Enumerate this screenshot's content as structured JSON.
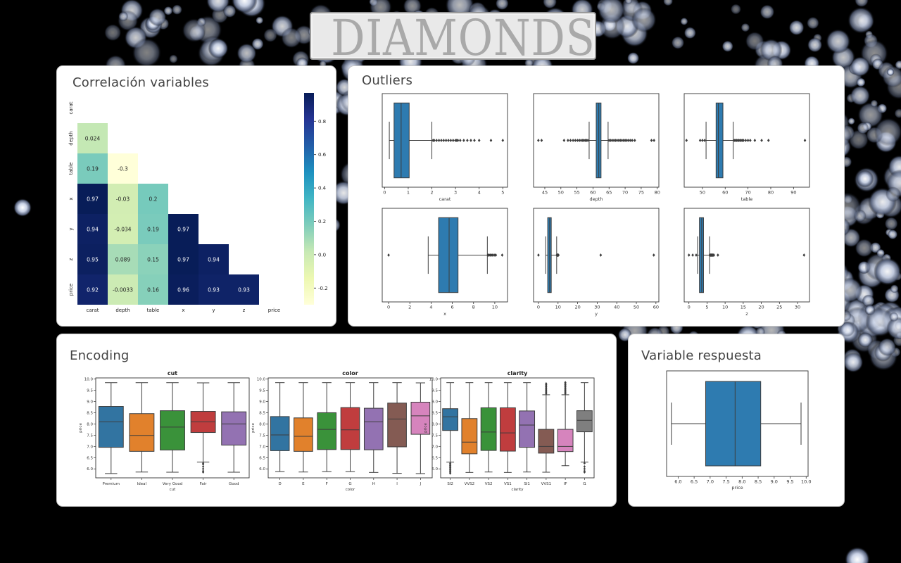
{
  "logo": {
    "text": "DIAMONDS"
  },
  "colors": {
    "box_blue": "#2e7bb0",
    "heat_dark": "#0c1f6e",
    "heat_light": "#ffffd9",
    "accent_bg": "#000000"
  },
  "correlation": {
    "title": "Correlación variables",
    "labels": [
      "carat",
      "depth",
      "table",
      "x",
      "y",
      "z",
      "price"
    ],
    "rows": [
      [],
      [
        0.024
      ],
      [
        0.19,
        -0.3
      ],
      [
        0.97,
        -0.03,
        0.2
      ],
      [
        0.94,
        -0.034,
        0.19,
        0.97
      ],
      [
        0.95,
        0.089,
        0.15,
        0.97,
        0.94
      ],
      [
        0.92,
        -0.0033,
        0.16,
        0.96,
        0.93,
        0.93
      ]
    ],
    "colorbar_ticks": [
      "0.8",
      "0.6",
      "0.4",
      "0.2",
      "0.0",
      "-0.2"
    ]
  },
  "outliers": {
    "title": "Outliers",
    "plots": [
      {
        "var": "carat",
        "ticks": [
          "0",
          "1",
          "2",
          "3",
          "4",
          "5"
        ],
        "range": [
          -0.1,
          5.2
        ],
        "q1": 0.4,
        "med": 0.7,
        "q3": 1.04,
        "wl": 0.2,
        "wh": 2.0,
        "out": [
          2.05,
          2.1,
          2.2,
          2.3,
          2.4,
          2.5,
          2.6,
          2.7,
          2.8,
          2.9,
          3.0,
          3.05,
          3.1,
          3.2,
          3.35,
          3.5,
          3.65,
          3.8,
          4.0,
          4.5,
          5.0
        ]
      },
      {
        "var": "depth",
        "ticks": [
          "45",
          "50",
          "55",
          "60",
          "65",
          "70",
          "75",
          "80"
        ],
        "range": [
          41.5,
          80.5
        ],
        "q1": 61.0,
        "med": 61.8,
        "q3": 62.5,
        "wl": 58.8,
        "wh": 64.7,
        "out": [
          43.0,
          44.0,
          51.0,
          52.2,
          53.0,
          53.8,
          54.5,
          55.2,
          55.8,
          56.3,
          56.8,
          57.2,
          57.6,
          58.0,
          58.4,
          65.0,
          65.5,
          66.0,
          66.5,
          67.0,
          67.5,
          68.0,
          68.5,
          69.0,
          69.5,
          70.0,
          70.5,
          71.0,
          71.6,
          72.2,
          73.0,
          78.2,
          79.0
        ]
      },
      {
        "var": "table",
        "ticks": [
          "50",
          "60",
          "70",
          "80",
          "90"
        ],
        "range": [
          42,
          97
        ],
        "q1": 56.0,
        "med": 57.0,
        "q3": 59.0,
        "wl": 51.6,
        "wh": 63.5,
        "out": [
          43.0,
          49.0,
          50.0,
          51.0,
          64.0,
          64.5,
          65.0,
          65.5,
          66.0,
          66.5,
          67.0,
          67.5,
          68.0,
          69.0,
          70.0,
          71.0,
          73.0,
          76.0,
          79.0,
          95.0
        ]
      },
      {
        "var": "x",
        "ticks": [
          "0",
          "2",
          "4",
          "6",
          "8",
          "10"
        ],
        "range": [
          -0.6,
          11.2
        ],
        "q1": 4.71,
        "med": 5.7,
        "q3": 6.54,
        "wl": 3.73,
        "wh": 9.3,
        "out": [
          0.0,
          9.35,
          9.45,
          9.55,
          9.65,
          9.75,
          9.85,
          10.0,
          10.1,
          10.7
        ]
      },
      {
        "var": "y",
        "ticks": [
          "0",
          "10",
          "20",
          "30",
          "40",
          "50",
          "60"
        ],
        "range": [
          -2.5,
          61.5
        ],
        "q1": 4.72,
        "med": 5.71,
        "q3": 6.54,
        "wl": 3.68,
        "wh": 9.3,
        "out": [
          0.0,
          9.4,
          9.5,
          9.6,
          9.7,
          9.8,
          9.9,
          10.0,
          10.2,
          31.8,
          58.9
        ]
      },
      {
        "var": "z",
        "ticks": [
          "0",
          "5",
          "10",
          "15",
          "20",
          "25",
          "30"
        ],
        "range": [
          -1.3,
          33.3
        ],
        "q1": 2.91,
        "med": 3.53,
        "q3": 4.04,
        "wl": 2.4,
        "wh": 5.7,
        "out": [
          0.0,
          1.05,
          2.0,
          5.75,
          5.85,
          5.95,
          6.05,
          6.15,
          6.25,
          6.35,
          6.45,
          6.55,
          6.65,
          6.75,
          6.9,
          8.0,
          31.8
        ]
      }
    ]
  },
  "encoding": {
    "title": "Encoding",
    "y_label": "price",
    "y_ticks": [
      "6.0",
      "6.5",
      "7.0",
      "7.5",
      "8.0",
      "8.5",
      "9.0",
      "9.5",
      "10.0"
    ],
    "plots": [
      {
        "title": "cut",
        "xlabel": "cut",
        "categories": [
          {
            "name": "Premium",
            "color": "#3274a1",
            "q1": 6.96,
            "med": 8.09,
            "q3": 8.78,
            "wl": 5.79,
            "wh": 9.84,
            "out": []
          },
          {
            "name": "Ideal",
            "color": "#e1812c",
            "q1": 6.78,
            "med": 7.49,
            "q3": 8.46,
            "wl": 5.86,
            "wh": 9.84,
            "out": []
          },
          {
            "name": "Very Good",
            "color": "#3a923a",
            "q1": 6.84,
            "med": 7.86,
            "q3": 8.59,
            "wl": 5.85,
            "wh": 9.84,
            "out": []
          },
          {
            "name": "Fair",
            "color": "#c03d3e",
            "q1": 7.62,
            "med": 8.09,
            "q3": 8.56,
            "wl": 6.3,
            "wh": 9.83,
            "out": [
              6.25,
              6.2,
              6.1,
              6.0,
              5.9,
              5.85
            ]
          },
          {
            "name": "Good",
            "color": "#9372b2",
            "q1": 7.06,
            "med": 8.0,
            "q3": 8.54,
            "wl": 5.85,
            "wh": 9.84,
            "out": []
          }
        ]
      },
      {
        "title": "color",
        "xlabel": "color",
        "categories": [
          {
            "name": "D",
            "color": "#3274a1",
            "q1": 6.81,
            "med": 7.51,
            "q3": 8.33,
            "wl": 5.88,
            "wh": 9.84,
            "out": []
          },
          {
            "name": "E",
            "color": "#e1812c",
            "q1": 6.78,
            "med": 7.45,
            "q3": 8.27,
            "wl": 5.86,
            "wh": 9.84,
            "out": []
          },
          {
            "name": "F",
            "color": "#3a923a",
            "q1": 6.86,
            "med": 7.76,
            "q3": 8.5,
            "wl": 5.88,
            "wh": 9.84,
            "out": []
          },
          {
            "name": "G",
            "color": "#c03d3e",
            "q1": 6.86,
            "med": 7.74,
            "q3": 8.73,
            "wl": 5.88,
            "wh": 9.84,
            "out": []
          },
          {
            "name": "H",
            "color": "#9372b2",
            "q1": 6.85,
            "med": 8.09,
            "q3": 8.7,
            "wl": 5.84,
            "wh": 9.84,
            "out": []
          },
          {
            "name": "I",
            "color": "#845b53",
            "q1": 6.98,
            "med": 8.22,
            "q3": 8.93,
            "wl": 5.8,
            "wh": 9.84,
            "out": []
          },
          {
            "name": "J",
            "color": "#d684bd",
            "q1": 7.54,
            "med": 8.36,
            "q3": 8.97,
            "wl": 5.79,
            "wh": 9.83,
            "out": []
          }
        ]
      },
      {
        "title": "clarity",
        "xlabel": "clarity",
        "categories": [
          {
            "name": "SI2",
            "color": "#3274a1",
            "q1": 7.71,
            "med": 8.32,
            "q3": 8.68,
            "wl": 6.3,
            "wh": 9.84,
            "out": [
              6.25,
              6.2,
              6.15,
              6.1,
              6.05,
              6.0,
              5.95,
              5.9,
              5.85,
              5.8
            ]
          },
          {
            "name": "VVS2",
            "color": "#e1812c",
            "q1": 6.67,
            "med": 7.19,
            "q3": 8.24,
            "wl": 5.84,
            "wh": 9.84,
            "out": []
          },
          {
            "name": "VS2",
            "color": "#3a923a",
            "q1": 6.82,
            "med": 7.64,
            "q3": 8.72,
            "wl": 5.86,
            "wh": 9.84,
            "out": []
          },
          {
            "name": "VS1",
            "color": "#c03d3e",
            "q1": 6.79,
            "med": 7.6,
            "q3": 8.72,
            "wl": 5.84,
            "wh": 9.84,
            "out": []
          },
          {
            "name": "SI1",
            "color": "#9372b2",
            "q1": 6.96,
            "med": 7.95,
            "q3": 8.58,
            "wl": 5.86,
            "wh": 9.84,
            "out": []
          },
          {
            "name": "VVS1",
            "color": "#845b53",
            "q1": 6.7,
            "med": 7.0,
            "q3": 7.76,
            "wl": 5.85,
            "wh": 9.3,
            "out": [
              9.35,
              9.4,
              9.45,
              9.5,
              9.55,
              9.6,
              9.65,
              9.7,
              9.75,
              9.8
            ]
          },
          {
            "name": "IF",
            "color": "#d684bd",
            "q1": 6.77,
            "med": 7.0,
            "q3": 7.76,
            "wl": 6.14,
            "wh": 9.3,
            "out": [
              9.35,
              9.4,
              9.45,
              9.5,
              9.55,
              9.6,
              9.65,
              9.7,
              9.75,
              9.8,
              9.85
            ]
          },
          {
            "name": "I1",
            "color": "#7f7f7f",
            "q1": 7.65,
            "med": 8.16,
            "q3": 8.59,
            "wl": 6.3,
            "wh": 9.84,
            "out": [
              6.25,
              6.1,
              6.0,
              5.9,
              5.85
            ]
          }
        ]
      }
    ]
  },
  "respuesta": {
    "title": "Variable respuesta",
    "xlabel": "price",
    "ticks": [
      "6.0",
      "6.5",
      "7.0",
      "7.5",
      "8.0",
      "8.5",
      "9.0",
      "9.5",
      "10.0"
    ],
    "range": [
      5.64,
      10.06
    ],
    "q1": 6.86,
    "med": 7.78,
    "q3": 8.58,
    "wl": 5.79,
    "wh": 9.84
  }
}
